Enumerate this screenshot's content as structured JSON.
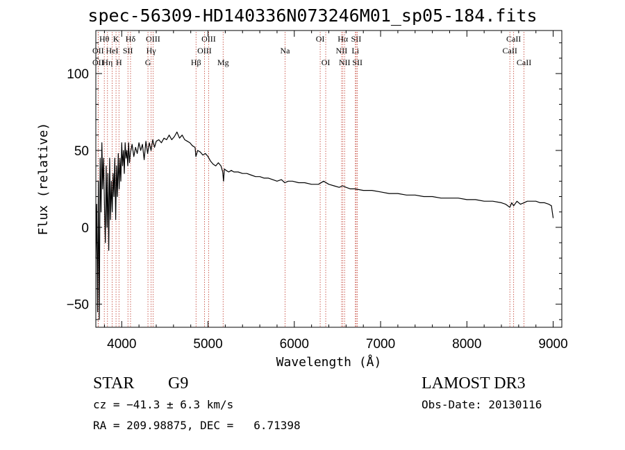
{
  "chart_data": {
    "type": "line",
    "title": "spec-56309-HD140336N073246M01_sp05-184.fits",
    "xlabel": "Wavelength (Å)",
    "ylabel": "Flux (relative)",
    "xlim": [
      3700,
      9100
    ],
    "ylim": [
      -65,
      128
    ],
    "xticks": [
      4000,
      5000,
      6000,
      7000,
      8000,
      9000
    ],
    "yticks": [
      -50,
      0,
      50,
      100
    ],
    "series": [
      {
        "name": "flux",
        "x": [
          3700,
          3710,
          3720,
          3730,
          3740,
          3750,
          3760,
          3770,
          3780,
          3790,
          3800,
          3810,
          3820,
          3830,
          3840,
          3850,
          3860,
          3870,
          3880,
          3890,
          3900,
          3910,
          3920,
          3930,
          3940,
          3950,
          3960,
          3970,
          3980,
          3990,
          4000,
          4010,
          4020,
          4030,
          4040,
          4050,
          4060,
          4070,
          4080,
          4090,
          4100,
          4120,
          4140,
          4160,
          4180,
          4200,
          4220,
          4240,
          4260,
          4280,
          4300,
          4320,
          4340,
          4360,
          4380,
          4400,
          4430,
          4460,
          4490,
          4520,
          4550,
          4580,
          4610,
          4640,
          4670,
          4700,
          4730,
          4760,
          4790,
          4820,
          4850,
          4860,
          4880,
          4910,
          4940,
          4970,
          5000,
          5030,
          5060,
          5090,
          5120,
          5150,
          5170,
          5180,
          5190,
          5210,
          5240,
          5270,
          5300,
          5350,
          5400,
          5450,
          5500,
          5550,
          5600,
          5650,
          5700,
          5750,
          5800,
          5850,
          5890,
          5930,
          5980,
          6050,
          6120,
          6200,
          6280,
          6340,
          6400,
          6460,
          6520,
          6560,
          6600,
          6650,
          6700,
          6800,
          6900,
          7000,
          7100,
          7200,
          7300,
          7400,
          7500,
          7600,
          7700,
          7800,
          7900,
          8000,
          8100,
          8200,
          8300,
          8400,
          8450,
          8498,
          8520,
          8542,
          8580,
          8620,
          8662,
          8700,
          8750,
          8800,
          8850,
          8900,
          8950,
          8980,
          8990,
          9000
        ],
        "values": [
          -20,
          15,
          -55,
          30,
          -60,
          45,
          10,
          55,
          25,
          45,
          15,
          -10,
          40,
          0,
          35,
          -15,
          45,
          5,
          30,
          10,
          35,
          20,
          45,
          5,
          40,
          20,
          48,
          25,
          45,
          30,
          55,
          40,
          50,
          35,
          55,
          45,
          50,
          40,
          55,
          42,
          48,
          54,
          46,
          52,
          48,
          55,
          50,
          54,
          44,
          56,
          48,
          55,
          50,
          57,
          52,
          56,
          57,
          55,
          58,
          57,
          60,
          57,
          59,
          62,
          58,
          60,
          57,
          56,
          55,
          53,
          52,
          46,
          50,
          49,
          47,
          48,
          46,
          43,
          41,
          40,
          42,
          40,
          36,
          30,
          38,
          37,
          36,
          37,
          36,
          36,
          35,
          35,
          34,
          33,
          33,
          32,
          32,
          31,
          30,
          31,
          29,
          30,
          30,
          29,
          29,
          28,
          28,
          30,
          28,
          27,
          26,
          27,
          26,
          25,
          25,
          24,
          24,
          23,
          22,
          22,
          21,
          21,
          20,
          20,
          19,
          19,
          19,
          18,
          18,
          17,
          17,
          16,
          15,
          13,
          16,
          14,
          17,
          15,
          16,
          17,
          17,
          17,
          16,
          16,
          15,
          14,
          10,
          6
        ]
      }
    ],
    "line_markers": [
      {
        "label": "Hθ",
        "x": 3798,
        "row": 1
      },
      {
        "label": "OII",
        "x": 3727,
        "row": 2
      },
      {
        "label": "OII",
        "x": 3727,
        "row": 3
      },
      {
        "label": "K",
        "x": 3934,
        "row": 1
      },
      {
        "label": "HeI",
        "x": 3889,
        "row": 2
      },
      {
        "label": "Hη",
        "x": 3835,
        "row": 3
      },
      {
        "label": "SII",
        "x": 4072,
        "row": 2
      },
      {
        "label": "H",
        "x": 3968,
        "row": 3
      },
      {
        "label": "Hδ",
        "x": 4102,
        "row": 1
      },
      {
        "label": "OIII",
        "x": 4363,
        "row": 1
      },
      {
        "label": "Hγ",
        "x": 4341,
        "row": 2
      },
      {
        "label": "G",
        "x": 4304,
        "row": 3
      },
      {
        "label": "OIII",
        "x": 5007,
        "row": 1
      },
      {
        "label": "OIII",
        "x": 4959,
        "row": 2
      },
      {
        "label": "Hβ",
        "x": 4861,
        "row": 3
      },
      {
        "label": "Mg",
        "x": 5175,
        "row": 3
      },
      {
        "label": "Na",
        "x": 5893,
        "row": 2
      },
      {
        "label": "OI",
        "x": 6300,
        "row": 1
      },
      {
        "label": "OI",
        "x": 6364,
        "row": 3
      },
      {
        "label": "Hα",
        "x": 6563,
        "row": 1
      },
      {
        "label": "SII",
        "x": 6717,
        "row": 1
      },
      {
        "label": "NII",
        "x": 6548,
        "row": 2
      },
      {
        "label": "Li",
        "x": 6708,
        "row": 2
      },
      {
        "label": "NII",
        "x": 6583,
        "row": 3
      },
      {
        "label": "SII",
        "x": 6731,
        "row": 3
      },
      {
        "label": "CaII",
        "x": 8542,
        "row": 1
      },
      {
        "label": "CaII",
        "x": 8498,
        "row": 2
      },
      {
        "label": "CaII",
        "x": 8662,
        "row": 3
      }
    ]
  },
  "info": {
    "class": "STAR",
    "subclass": "G9",
    "survey": "LAMOST DR3",
    "cz": "cz = −41.3 ± 6.3 km/s",
    "obs_date": "Obs-Date: 20130116",
    "radec": "RA = 209.98875, DEC =   6.71398"
  },
  "colors": {
    "line_marker": "#c0392b",
    "spectrum": "#000000"
  }
}
